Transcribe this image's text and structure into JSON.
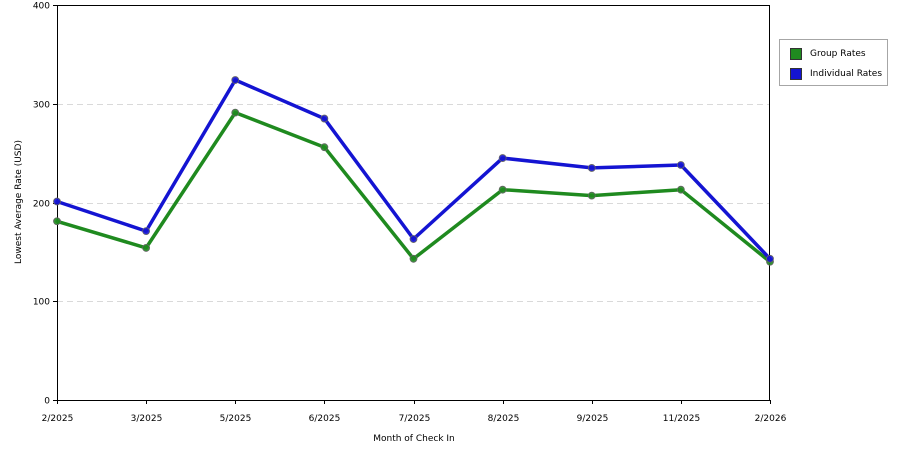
{
  "chart_data": {
    "type": "line",
    "categories": [
      "2/2025",
      "3/2025",
      "5/2025",
      "6/2025",
      "7/2025",
      "8/2025",
      "9/2025",
      "11/2025",
      "2/2026"
    ],
    "series": [
      {
        "name": "Group Rates",
        "color": "#1f8a1f",
        "values": [
          181,
          154,
          291,
          256,
          143,
          213,
          207,
          213,
          140
        ]
      },
      {
        "name": "Individual Rates",
        "color": "#1414d2",
        "values": [
          201,
          171,
          324,
          285,
          163,
          245,
          235,
          238,
          143
        ]
      }
    ],
    "xlabel": "Month of Check In",
    "ylabel": "Lowest Average Rate (USD)",
    "ylim": [
      0,
      400
    ],
    "yticks": [
      0,
      100,
      200,
      300,
      400
    ],
    "grid": true,
    "legend_position": "top-right"
  }
}
